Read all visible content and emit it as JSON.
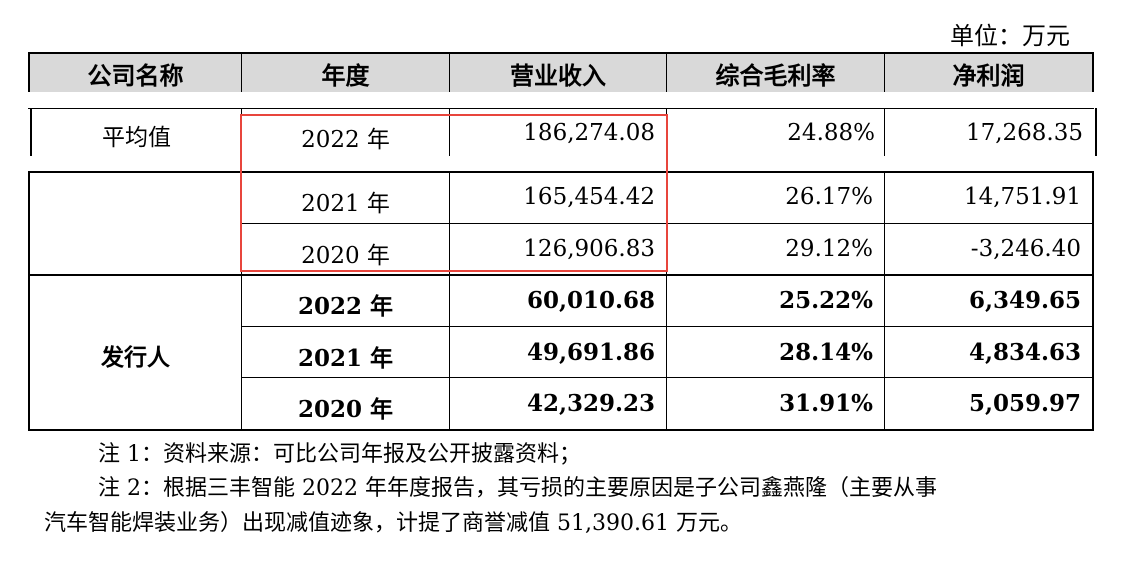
{
  "unit_label": "单位：万元",
  "headers": [
    "公司名称",
    "年度",
    "营业收入",
    "综合毛利率",
    "净利润"
  ],
  "average_row": {
    "label": "平均值",
    "year": "2022 年",
    "revenue": "186,274.08",
    "margin": "24.88%",
    "profit": "17,268.35"
  },
  "average_rows_extra": [
    {
      "year": "2021 年",
      "revenue": "165,454.42",
      "margin": "26.17%",
      "profit": "14,751.91"
    },
    {
      "year": "2020 年",
      "revenue": "126,906.83",
      "margin": "29.12%",
      "profit": "-3,246.40"
    }
  ],
  "issuer": {
    "label": "发行人",
    "rows": [
      {
        "year": "2022 年",
        "revenue": "60,010.68",
        "margin": "25.22%",
        "profit": "6,349.65"
      },
      {
        "year": "2021 年",
        "revenue": "49,691.86",
        "margin": "28.14%",
        "profit": "4,834.63"
      },
      {
        "year": "2020 年",
        "revenue": "42,329.23",
        "margin": "31.91%",
        "profit": "5,059.97"
      }
    ]
  },
  "notes": {
    "note1": "注 1：资料来源：可比公司年报及公开披露资料；",
    "note2_line1": "注 2：根据三丰智能 2022 年年度报告，其亏损的主要原因是子公司鑫燕隆（主要从事",
    "note2_line2": "汽车智能焊装业务）出现减值迹象，计提了商誉减值 51,390.61 万元。"
  },
  "colors": {
    "header_bg": "#d9d9d9",
    "highlight_box": "#e8453c"
  }
}
